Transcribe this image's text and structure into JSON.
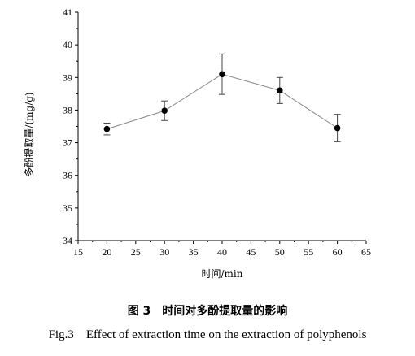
{
  "chart_data": {
    "type": "line",
    "title": "",
    "xlabel": "时间/min",
    "ylabel": "多酚提取量/(mg/g)",
    "xlim": [
      15,
      65
    ],
    "ylim": [
      34,
      41
    ],
    "xticks": [
      "15",
      "20",
      "25",
      "30",
      "35",
      "40",
      "45",
      "50",
      "55",
      "60",
      "65"
    ],
    "yticks": [
      "34",
      "35",
      "36",
      "37",
      "38",
      "39",
      "40",
      "41"
    ],
    "grid": false,
    "legend": "none",
    "series": [
      {
        "x": [
          20,
          30,
          40,
          50,
          60
        ],
        "y": [
          37.42,
          37.98,
          39.1,
          38.6,
          37.45
        ],
        "yerr": [
          0.18,
          0.3,
          0.62,
          0.4,
          0.42
        ],
        "color": "#000000",
        "line_color": "#888888"
      }
    ]
  },
  "caption": {
    "figure_cn": "图 3　时间对多酚提取量的影响",
    "figure_en": "Fig.3　Effect of extraction time on the extraction of polyphenols"
  }
}
